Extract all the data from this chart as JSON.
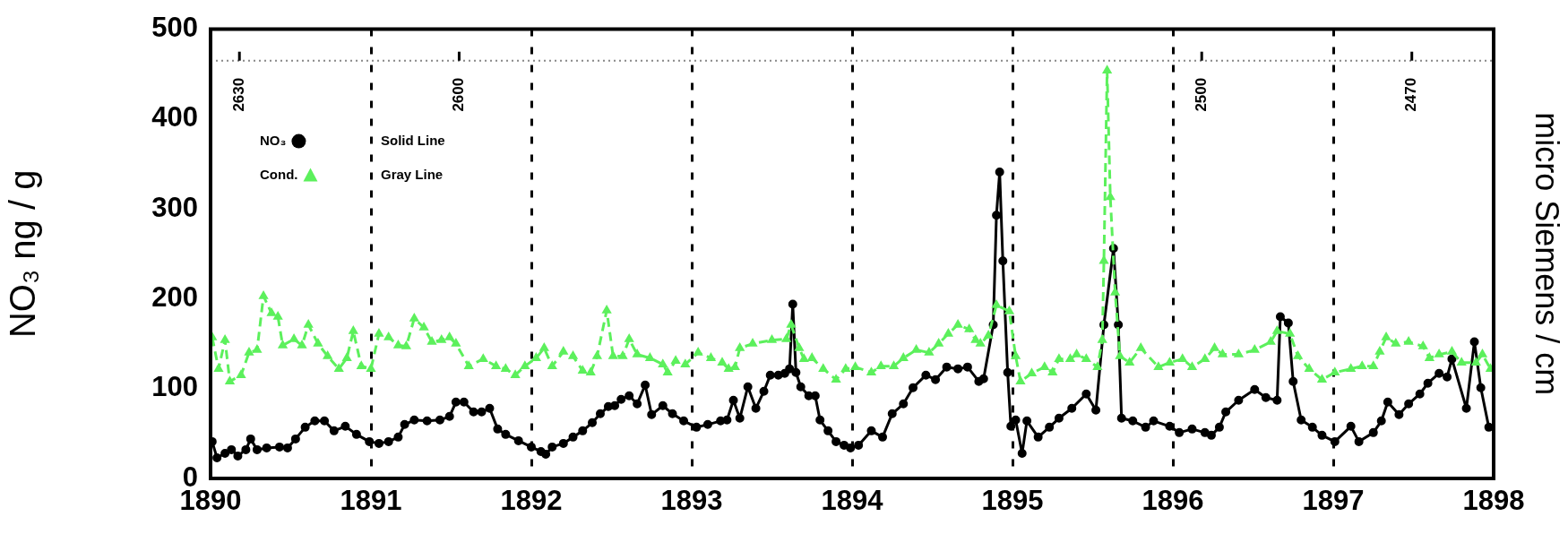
{
  "chart_data": {
    "type": "line",
    "xlabel": null,
    "ylabel": "NO₃ ng / g",
    "y2label": "micro Siemens / cm",
    "xlim": [
      1890,
      1898
    ],
    "xticks": [
      1890,
      1891,
      1892,
      1893,
      1894,
      1895,
      1896,
      1897,
      1898
    ],
    "ylim": [
      0,
      500
    ],
    "yticks": [
      0,
      100,
      200,
      300,
      400,
      500
    ],
    "grid": "x",
    "legend": "top left",
    "ref_lines": [
      {
        "axis": "y",
        "value": 465,
        "label": null,
        "color": "#888888",
        "line_style": "dotted"
      }
    ],
    "annotations": [
      "Solid Line",
      "Gray Line",
      {
        "text": "2630",
        "x": 1890.18,
        "y": 465
      },
      {
        "text": "2600",
        "x": 1891.55,
        "y": 465
      },
      {
        "text": "2500",
        "x": 1896.18,
        "y": 465
      },
      {
        "text": "2470",
        "x": 1897.49,
        "y": 465
      }
    ],
    "series": [
      {
        "name": "Cond.",
        "color": "#5cf05c",
        "marker": "triangle",
        "line_style": "dashed",
        "x": [
          1890.01,
          1890.05,
          1890.09,
          1890.12,
          1890.19,
          1890.24,
          1890.29,
          1890.33,
          1890.38,
          1890.42,
          1890.45,
          1890.52,
          1890.57,
          1890.61,
          1890.67,
          1890.73,
          1890.8,
          1890.85,
          1890.89,
          1890.94,
          1891.0,
          1891.05,
          1891.11,
          1891.17,
          1891.22,
          1891.27,
          1891.33,
          1891.38,
          1891.44,
          1891.49,
          1891.53,
          1891.61,
          1891.7,
          1891.78,
          1891.84,
          1891.9,
          1891.96,
          1892.03,
          1892.08,
          1892.13,
          1892.2,
          1892.26,
          1892.32,
          1892.37,
          1892.41,
          1892.47,
          1892.51,
          1892.57,
          1892.61,
          1892.66,
          1892.74,
          1892.82,
          1892.85,
          1892.9,
          1892.96,
          1893.04,
          1893.12,
          1893.19,
          1893.23,
          1893.27,
          1893.3,
          1893.38,
          1893.5,
          1893.59,
          1893.62,
          1893.67,
          1893.7,
          1893.75,
          1893.82,
          1893.9,
          1893.96,
          1894.02,
          1894.12,
          1894.18,
          1894.26,
          1894.32,
          1894.4,
          1894.48,
          1894.54,
          1894.6,
          1894.66,
          1894.73,
          1894.77,
          1894.8,
          1894.85,
          1894.9,
          1894.98,
          1895.02,
          1895.05,
          1895.12,
          1895.2,
          1895.25,
          1895.29,
          1895.36,
          1895.4,
          1895.46,
          1895.53,
          1895.56,
          1895.57,
          1895.59,
          1895.61,
          1895.64,
          1895.67,
          1895.73,
          1895.8,
          1895.91,
          1895.98,
          1896.06,
          1896.12,
          1896.2,
          1896.26,
          1896.31,
          1896.41,
          1896.51,
          1896.61,
          1896.65,
          1896.73,
          1896.78,
          1896.85,
          1896.93,
          1897.01,
          1897.11,
          1897.18,
          1897.25,
          1897.29,
          1897.33,
          1897.39,
          1897.47,
          1897.56,
          1897.6,
          1897.66,
          1897.74,
          1897.8,
          1897.89,
          1897.93,
          1897.98
        ],
        "values": [
          157,
          122,
          154,
          108,
          115,
          140,
          143,
          203,
          184,
          180,
          148,
          155,
          148,
          171,
          150,
          136,
          122,
          134,
          164,
          125,
          122,
          161,
          157,
          148,
          147,
          178,
          168,
          152,
          154,
          157,
          150,
          125,
          133,
          125,
          122,
          115,
          125,
          134,
          145,
          125,
          141,
          136,
          120,
          118,
          136,
          187,
          136,
          136,
          155,
          138,
          134,
          127,
          118,
          131,
          127,
          140,
          134,
          129,
          122,
          124,
          145,
          150,
          154,
          155,
          171,
          145,
          133,
          134,
          122,
          110,
          122,
          124,
          118,
          125,
          125,
          134,
          143,
          140,
          150,
          161,
          171,
          166,
          154,
          150,
          159,
          193,
          186,
          136,
          108,
          117,
          124,
          118,
          133,
          133,
          138,
          133,
          124,
          154,
          242,
          454,
          313,
          207,
          136,
          129,
          145,
          124,
          129,
          133,
          124,
          133,
          145,
          138,
          138,
          143,
          152,
          164,
          161,
          136,
          122,
          110,
          118,
          122,
          125,
          125,
          141,
          157,
          150,
          152,
          147,
          134,
          138,
          141,
          129,
          129,
          138,
          122
        ]
      },
      {
        "name": "NO₃",
        "color": "#000000",
        "marker": "circle",
        "line_style": "solid",
        "x": [
          1890.01,
          1890.04,
          1890.09,
          1890.13,
          1890.17,
          1890.22,
          1890.25,
          1890.29,
          1890.35,
          1890.43,
          1890.48,
          1890.53,
          1890.59,
          1890.65,
          1890.71,
          1890.77,
          1890.84,
          1890.91,
          1890.99,
          1891.05,
          1891.11,
          1891.17,
          1891.21,
          1891.27,
          1891.35,
          1891.43,
          1891.49,
          1891.53,
          1891.58,
          1891.64,
          1891.69,
          1891.74,
          1891.79,
          1891.84,
          1891.92,
          1892.0,
          1892.06,
          1892.09,
          1892.13,
          1892.2,
          1892.26,
          1892.32,
          1892.38,
          1892.43,
          1892.48,
          1892.52,
          1892.56,
          1892.61,
          1892.66,
          1892.71,
          1892.75,
          1892.82,
          1892.88,
          1892.95,
          1893.03,
          1893.1,
          1893.18,
          1893.22,
          1893.26,
          1893.3,
          1893.35,
          1893.4,
          1893.45,
          1893.49,
          1893.54,
          1893.58,
          1893.61,
          1893.63,
          1893.65,
          1893.68,
          1893.73,
          1893.77,
          1893.8,
          1893.85,
          1893.9,
          1893.95,
          1893.99,
          1894.04,
          1894.12,
          1894.19,
          1894.25,
          1894.32,
          1894.38,
          1894.46,
          1894.52,
          1894.59,
          1894.66,
          1894.72,
          1894.79,
          1894.82,
          1894.88,
          1894.9,
          1894.92,
          1894.94,
          1894.97,
          1894.99,
          1895.02,
          1895.06,
          1895.09,
          1895.16,
          1895.23,
          1895.29,
          1895.37,
          1895.46,
          1895.52,
          1895.57,
          1895.63,
          1895.66,
          1895.68,
          1895.75,
          1895.83,
          1895.88,
          1895.98,
          1896.04,
          1896.12,
          1896.2,
          1896.24,
          1896.29,
          1896.33,
          1896.41,
          1896.51,
          1896.58,
          1896.65,
          1896.67,
          1896.72,
          1896.75,
          1896.8,
          1896.87,
          1896.93,
          1897.01,
          1897.11,
          1897.16,
          1897.25,
          1897.3,
          1897.34,
          1897.41,
          1897.47,
          1897.54,
          1897.59,
          1897.66,
          1897.71,
          1897.74,
          1897.83,
          1897.88,
          1897.92,
          1897.97
        ],
        "values": [
          41,
          23,
          28,
          32,
          25,
          32,
          44,
          32,
          34,
          35,
          34,
          44,
          57,
          64,
          64,
          53,
          58,
          49,
          41,
          39,
          41,
          46,
          60,
          65,
          64,
          65,
          69,
          85,
          85,
          74,
          74,
          78,
          55,
          49,
          42,
          35,
          30,
          27,
          35,
          39,
          46,
          53,
          62,
          72,
          80,
          81,
          88,
          92,
          83,
          104,
          71,
          81,
          72,
          64,
          57,
          60,
          64,
          65,
          87,
          67,
          102,
          78,
          97,
          115,
          115,
          117,
          122,
          194,
          118,
          102,
          92,
          92,
          65,
          53,
          41,
          37,
          34,
          37,
          53,
          46,
          72,
          83,
          101,
          115,
          110,
          124,
          122,
          124,
          108,
          111,
          171,
          293,
          341,
          242,
          118,
          58,
          65,
          28,
          64,
          46,
          57,
          67,
          78,
          94,
          76,
          171,
          256,
          171,
          67,
          64,
          57,
          64,
          58,
          51,
          55,
          51,
          48,
          57,
          74,
          87,
          99,
          90,
          87,
          180,
          173,
          108,
          65,
          57,
          48,
          41,
          58,
          41,
          51,
          64,
          85,
          71,
          83,
          94,
          106,
          117,
          113,
          133,
          78,
          152,
          101,
          57
        ]
      }
    ]
  }
}
